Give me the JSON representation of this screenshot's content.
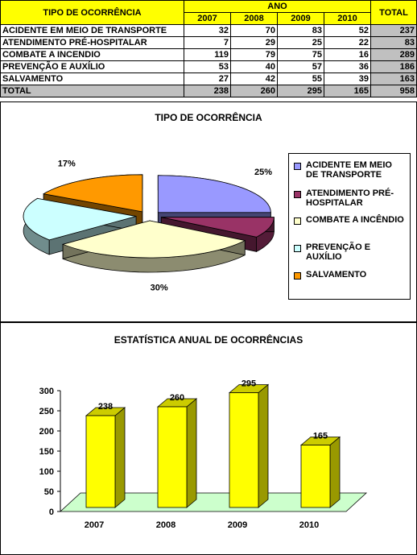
{
  "table": {
    "header_label": "TIPO DE OCORRÊNCIA",
    "ano_label": "ANO",
    "total_label": "TOTAL",
    "years": [
      "2007",
      "2008",
      "2009",
      "2010"
    ],
    "rows": [
      {
        "label": "ACIDENTE EM MEIO DE TRANSPORTE",
        "values": [
          "32",
          "70",
          "83",
          "52"
        ],
        "total": "237"
      },
      {
        "label": "ATENDIMENTO PRÉ-HOSPITALAR",
        "values": [
          "7",
          "29",
          "25",
          "22"
        ],
        "total": "83"
      },
      {
        "label": "COMBATE A INCENDIO",
        "values": [
          "119",
          "79",
          "75",
          "16"
        ],
        "total": "289"
      },
      {
        "label": "PREVENÇÃO E AUXÍLIO",
        "values": [
          "53",
          "40",
          "57",
          "36"
        ],
        "total": "186"
      },
      {
        "label": "SALVAMENTO",
        "values": [
          "27",
          "42",
          "55",
          "39"
        ],
        "total": "163"
      }
    ],
    "total_row": {
      "label": "TOTAL",
      "values": [
        "238",
        "260",
        "295",
        "165"
      ],
      "total": "958"
    }
  },
  "chart_data": [
    {
      "type": "pie",
      "title": "TIPO DE OCORRÊNCIA",
      "legend_position": "right",
      "slices": [
        {
          "label": "ACIDENTE EM MEIO DE TRANSPORTE",
          "value": 25,
          "display": "25%",
          "color": "#9999ff"
        },
        {
          "label": "ATENDIMENTO PRÉ-HOSPITALAR",
          "value": 9,
          "display": "9%",
          "color": "#993366"
        },
        {
          "label": "COMBATE A INCÊNDIO",
          "value": 30,
          "display": "30%",
          "color": "#ffffcc"
        },
        {
          "label": "PREVENÇÃO E AUXÍLIO",
          "value": 19,
          "display": "19%",
          "color": "#ccffff"
        },
        {
          "label": "SALVAMENTO",
          "value": 17,
          "display": "17%",
          "color": "#ff9900"
        }
      ]
    },
    {
      "type": "bar",
      "title": "ESTATÍSTICA ANUAL DE OCORRÊNCIAS",
      "categories": [
        "2007",
        "2008",
        "2009",
        "2010"
      ],
      "values": [
        238,
        260,
        295,
        165
      ],
      "value_labels": [
        "238",
        "260",
        "295",
        "165"
      ],
      "ylim": [
        0,
        300
      ],
      "yticks": [
        "0",
        "50",
        "100",
        "150",
        "200",
        "250",
        "300"
      ],
      "bar_color": "#ffff00",
      "floor_color": "#ccffcc"
    }
  ]
}
